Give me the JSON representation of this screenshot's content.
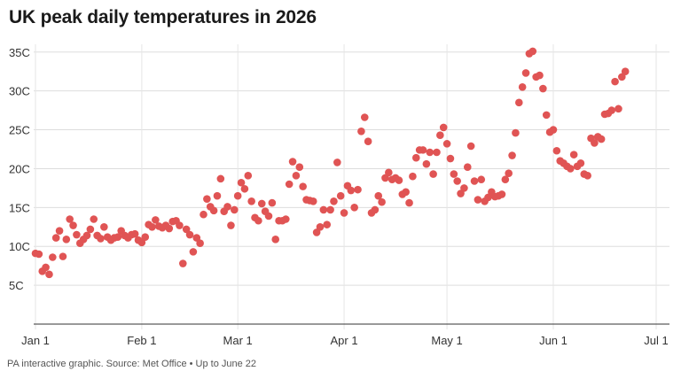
{
  "title": "UK peak daily temperatures in 2026",
  "footer": "PA interactive graphic. Source: Met Office • Up to June 22",
  "colors": {
    "point": "#e05454",
    "grid": "#dddddd",
    "text": "#333333"
  },
  "chart_data": {
    "type": "scatter",
    "title": "UK peak daily temperatures in 2026",
    "xlabel": "",
    "ylabel": "",
    "x_ticks": [
      "Jan 1",
      "Feb 1",
      "Mar 1",
      "Apr 1",
      "May 1",
      "Jun 1",
      "Jul 1"
    ],
    "y_ticks": [
      "5C",
      "10C",
      "15C",
      "20C",
      "25C",
      "30C",
      "35C"
    ],
    "xlim": [
      "2026-01-01",
      "2026-07-01"
    ],
    "ylim": [
      0,
      36
    ],
    "grid": true,
    "x": [
      "2026-01-01",
      "2026-01-02",
      "2026-01-03",
      "2026-01-04",
      "2026-01-05",
      "2026-01-06",
      "2026-01-07",
      "2026-01-08",
      "2026-01-09",
      "2026-01-10",
      "2026-01-11",
      "2026-01-12",
      "2026-01-13",
      "2026-01-14",
      "2026-01-15",
      "2026-01-16",
      "2026-01-17",
      "2026-01-18",
      "2026-01-19",
      "2026-01-20",
      "2026-01-21",
      "2026-01-22",
      "2026-01-23",
      "2026-01-24",
      "2026-01-25",
      "2026-01-26",
      "2026-01-27",
      "2026-01-28",
      "2026-01-29",
      "2026-01-30",
      "2026-01-31",
      "2026-02-01",
      "2026-02-02",
      "2026-02-03",
      "2026-02-04",
      "2026-02-05",
      "2026-02-06",
      "2026-02-07",
      "2026-02-08",
      "2026-02-09",
      "2026-02-10",
      "2026-02-11",
      "2026-02-12",
      "2026-02-13",
      "2026-02-14",
      "2026-02-15",
      "2026-02-16",
      "2026-02-17",
      "2026-02-18",
      "2026-02-19",
      "2026-02-20",
      "2026-02-21",
      "2026-02-22",
      "2026-02-23",
      "2026-02-24",
      "2026-02-25",
      "2026-02-26",
      "2026-02-27",
      "2026-02-28",
      "2026-03-01",
      "2026-03-02",
      "2026-03-03",
      "2026-03-04",
      "2026-03-05",
      "2026-03-06",
      "2026-03-07",
      "2026-03-08",
      "2026-03-09",
      "2026-03-10",
      "2026-03-11",
      "2026-03-12",
      "2026-03-13",
      "2026-03-14",
      "2026-03-15",
      "2026-03-16",
      "2026-03-17",
      "2026-03-18",
      "2026-03-19",
      "2026-03-20",
      "2026-03-21",
      "2026-03-22",
      "2026-03-23",
      "2026-03-24",
      "2026-03-25",
      "2026-03-26",
      "2026-03-27",
      "2026-03-28",
      "2026-03-29",
      "2026-03-30",
      "2026-03-31",
      "2026-04-01",
      "2026-04-02",
      "2026-04-03",
      "2026-04-04",
      "2026-04-05",
      "2026-04-06",
      "2026-04-07",
      "2026-04-08",
      "2026-04-09",
      "2026-04-10",
      "2026-04-11",
      "2026-04-12",
      "2026-04-13",
      "2026-04-14",
      "2026-04-15",
      "2026-04-16",
      "2026-04-17",
      "2026-04-18",
      "2026-04-19",
      "2026-04-20",
      "2026-04-21",
      "2026-04-22",
      "2026-04-23",
      "2026-04-24",
      "2026-04-25",
      "2026-04-26",
      "2026-04-27",
      "2026-04-28",
      "2026-04-29",
      "2026-04-30",
      "2026-05-01",
      "2026-05-02",
      "2026-05-03",
      "2026-05-04",
      "2026-05-05",
      "2026-05-06",
      "2026-05-07",
      "2026-05-08",
      "2026-05-09",
      "2026-05-10",
      "2026-05-11",
      "2026-05-12",
      "2026-05-13",
      "2026-05-14",
      "2026-05-15",
      "2026-05-16",
      "2026-05-17",
      "2026-05-18",
      "2026-05-19",
      "2026-05-20",
      "2026-05-21",
      "2026-05-22",
      "2026-05-23",
      "2026-05-24",
      "2026-05-25",
      "2026-05-26",
      "2026-05-27",
      "2026-05-28",
      "2026-05-29",
      "2026-05-30",
      "2026-05-31",
      "2026-06-01",
      "2026-06-02",
      "2026-06-03",
      "2026-06-04",
      "2026-06-05",
      "2026-06-06",
      "2026-06-07",
      "2026-06-08",
      "2026-06-09",
      "2026-06-10",
      "2026-06-11",
      "2026-06-12",
      "2026-06-13",
      "2026-06-14",
      "2026-06-15",
      "2026-06-16",
      "2026-06-17",
      "2026-06-18",
      "2026-06-19",
      "2026-06-20",
      "2026-06-21",
      "2026-06-22"
    ],
    "y": [
      9.1,
      9.0,
      6.8,
      7.3,
      6.4,
      8.6,
      11.1,
      12.0,
      8.7,
      10.9,
      13.5,
      12.7,
      11.5,
      10.4,
      10.9,
      11.4,
      12.2,
      13.5,
      11.4,
      11.0,
      12.5,
      11.2,
      10.8,
      11.1,
      11.2,
      12.0,
      11.4,
      11.1,
      11.5,
      11.6,
      10.8,
      10.5,
      11.2,
      12.8,
      12.5,
      13.4,
      12.6,
      12.4,
      12.7,
      12.3,
      13.2,
      13.3,
      12.7,
      7.8,
      12.2,
      11.5,
      9.3,
      11.1,
      10.4,
      14.1,
      16.1,
      15.1,
      14.6,
      16.5,
      18.7,
      14.5,
      15.1,
      12.7,
      14.7,
      16.5,
      18.2,
      17.4,
      19.1,
      15.8,
      13.7,
      13.3,
      15.5,
      14.5,
      13.9,
      15.6,
      10.9,
      13.3,
      13.3,
      13.5,
      18.0,
      20.9,
      19.1,
      20.2,
      17.7,
      16.0,
      15.9,
      15.8,
      11.8,
      12.5,
      14.7,
      12.8,
      14.7,
      15.8,
      20.8,
      16.5,
      14.3,
      17.8,
      17.2,
      15.0,
      17.3,
      24.8,
      26.6,
      23.5,
      14.3,
      14.7,
      16.5,
      15.7,
      18.8,
      19.5,
      18.6,
      18.8,
      18.5,
      16.7,
      17.0,
      15.6,
      19.0,
      21.4,
      22.4,
      22.4,
      20.6,
      22.1,
      19.3,
      22.1,
      24.3,
      25.3,
      23.2,
      21.3,
      19.3,
      18.4,
      16.8,
      17.5,
      20.2,
      22.9,
      18.4,
      16.0,
      18.6,
      15.8,
      16.3,
      17.0,
      16.4,
      16.5,
      16.7,
      18.6,
      19.4,
      21.7,
      24.6,
      28.5,
      30.5,
      32.3,
      34.8,
      35.1,
      31.8,
      32.0,
      30.3,
      26.9,
      24.7,
      25.0,
      22.3,
      21.0,
      20.7,
      20.3,
      20.0,
      21.8,
      20.3,
      20.7,
      19.3,
      19.1,
      23.9,
      23.3,
      24.1,
      23.8,
      27.0,
      27.1,
      27.5,
      31.2,
      27.7,
      31.8,
      32.5
    ]
  }
}
